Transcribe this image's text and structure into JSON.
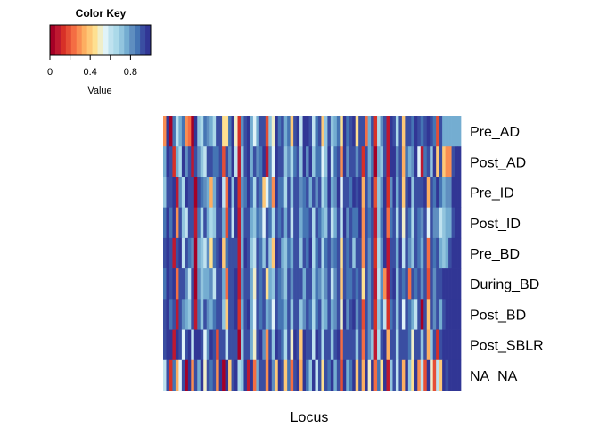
{
  "chart_data": {
    "type": "heatmap",
    "color_key": {
      "title": "Color Key",
      "xlabel": "Value",
      "ticks": [
        0,
        0.4,
        0.8
      ],
      "tick_labels": [
        "0",
        "0.4",
        "0.8"
      ],
      "range": [
        0,
        1
      ],
      "palette": [
        "#a50026",
        "#be1830",
        "#d73027",
        "#e54e35",
        "#f46d43",
        "#f98e52",
        "#fdae61",
        "#fec877",
        "#fee090",
        "#f0eec9",
        "#e0f3f8",
        "#bfe2ef",
        "#abd9e9",
        "#92c5de",
        "#74add1",
        "#5f8ec0",
        "#4575b4",
        "#3a4ea2",
        "#313695"
      ]
    },
    "rows": [
      "Pre_AD",
      "Post_AD",
      "Pre_ID",
      "Post_ID",
      "Pre_BD",
      "During_BD",
      "Post_BD",
      "Post_SBLR",
      "NA_NA"
    ],
    "xlabel": "Locus",
    "n_columns": 96,
    "values": [
      [
        0.3,
        0.97,
        0.02,
        0.88,
        0.6,
        0.75,
        0.85,
        0.3,
        0.25,
        0.05,
        0.95,
        0.72,
        0.64,
        0.88,
        0.82,
        0.74,
        0.68,
        0.92,
        0.93,
        0.45,
        0.45,
        0.86,
        0.97,
        0.52,
        0.12,
        0.82,
        0.93,
        0.95,
        0.78,
        0.55,
        0.77,
        0.9,
        0.92,
        0.2,
        0.7,
        0.48,
        0.95,
        0.85,
        0.92,
        0.78,
        0.85,
        0.4,
        0.9,
        0.95,
        0.62,
        0.98,
        0.95,
        0.92,
        0.62,
        0.85,
        0.9,
        0.4,
        0.72,
        0.92,
        0.7,
        0.74,
        0.85,
        0.45,
        0.95,
        0.86,
        0.9,
        0.96,
        0.45,
        0.92,
        0.92,
        0.22,
        0.75,
        0.94,
        0.15,
        0.68,
        0.82,
        0.94,
        0.08,
        0.95,
        0.92,
        0.65,
        0.92,
        0.42,
        0.9,
        0.91,
        0.85,
        0.95,
        0.92,
        0.86,
        0.92,
        0.95,
        0.93,
        0.88,
        0.2,
        0.93,
        0.76,
        0.76,
        0.76,
        0.76,
        0.76,
        0.76
      ],
      [
        0.78,
        0.97,
        0.92,
        0.15,
        0.75,
        0.65,
        0.95,
        0.8,
        0.9,
        0.08,
        0.9,
        0.82,
        0.7,
        0.6,
        0.9,
        0.92,
        0.86,
        0.85,
        0.92,
        0.18,
        0.93,
        0.8,
        0.97,
        0.6,
        0.08,
        0.7,
        0.92,
        0.96,
        0.74,
        0.9,
        0.82,
        0.88,
        0.95,
        0.08,
        0.8,
        0.55,
        0.95,
        0.92,
        0.9,
        0.7,
        0.8,
        0.68,
        0.88,
        0.92,
        0.72,
        0.98,
        0.8,
        0.95,
        0.72,
        0.86,
        0.88,
        0.55,
        0.72,
        0.95,
        0.58,
        0.85,
        0.92,
        0.3,
        0.96,
        0.8,
        0.92,
        0.9,
        0.8,
        0.92,
        0.12,
        0.92,
        0.76,
        0.88,
        0.05,
        0.76,
        0.7,
        0.92,
        0.1,
        0.96,
        0.95,
        0.82,
        0.92,
        0.35,
        0.88,
        0.78,
        0.82,
        0.96,
        0.55,
        0.08,
        0.88,
        0.93,
        0.72,
        0.95,
        0.4,
        0.93,
        0.42,
        0.28,
        0.28,
        0.9,
        0.97,
        0.97
      ],
      [
        0.7,
        0.93,
        0.92,
        0.95,
        0.1,
        0.82,
        0.68,
        0.96,
        0.9,
        0.92,
        0.05,
        0.92,
        0.88,
        0.82,
        0.75,
        0.35,
        0.76,
        0.92,
        0.95,
        0.6,
        0.25,
        0.96,
        0.72,
        0.96,
        0.14,
        0.8,
        0.88,
        0.95,
        0.86,
        0.65,
        0.92,
        0.85,
        0.4,
        0.55,
        0.8,
        0.3,
        0.96,
        0.85,
        0.88,
        0.68,
        0.92,
        0.72,
        0.92,
        0.92,
        0.8,
        0.86,
        0.92,
        0.76,
        0.92,
        0.84,
        0.9,
        0.65,
        0.78,
        0.96,
        0.74,
        0.82,
        0.96,
        0.55,
        0.94,
        0.9,
        0.86,
        0.96,
        0.92,
        0.97,
        0.35,
        0.9,
        0.82,
        0.96,
        0.2,
        0.7,
        0.82,
        0.95,
        0.12,
        0.82,
        0.96,
        0.75,
        0.92,
        0.4,
        0.92,
        0.95,
        0.72,
        0.9,
        0.92,
        0.94,
        0.95,
        0.35,
        0.93,
        0.86,
        0.96,
        0.88,
        0.78,
        0.82,
        0.82,
        0.96,
        0.97,
        0.97
      ],
      [
        0.85,
        0.97,
        0.88,
        0.95,
        0.3,
        0.9,
        0.7,
        0.6,
        0.92,
        0.94,
        0.08,
        0.86,
        0.65,
        0.9,
        0.78,
        0.66,
        0.7,
        0.92,
        0.94,
        0.75,
        0.2,
        0.94,
        0.62,
        0.97,
        0.1,
        0.78,
        0.92,
        0.9,
        0.76,
        0.7,
        0.88,
        0.8,
        0.55,
        0.92,
        0.85,
        0.68,
        0.94,
        0.88,
        0.9,
        0.76,
        0.92,
        0.62,
        0.9,
        0.92,
        0.78,
        0.88,
        0.86,
        0.92,
        0.68,
        0.9,
        0.86,
        0.74,
        0.7,
        0.92,
        0.62,
        0.78,
        0.92,
        0.58,
        0.95,
        0.82,
        0.92,
        0.85,
        0.88,
        0.96,
        0.3,
        0.92,
        0.86,
        0.92,
        0.08,
        0.72,
        0.88,
        0.96,
        0.22,
        0.86,
        0.92,
        0.65,
        0.9,
        0.5,
        0.92,
        0.88,
        0.68,
        0.92,
        0.88,
        0.8,
        0.94,
        0.56,
        0.94,
        0.82,
        0.8,
        0.62,
        0.72,
        0.74,
        0.76,
        0.92,
        0.97,
        0.97
      ],
      [
        0.94,
        0.97,
        0.9,
        0.08,
        0.94,
        0.95,
        0.62,
        0.9,
        0.88,
        0.82,
        0.05,
        0.78,
        0.72,
        0.6,
        0.82,
        0.45,
        0.88,
        0.92,
        0.96,
        0.4,
        0.88,
        0.92,
        0.92,
        0.92,
        0.08,
        0.74,
        0.96,
        0.92,
        0.7,
        0.6,
        0.92,
        0.86,
        0.72,
        0.9,
        0.7,
        0.4,
        0.95,
        0.92,
        0.74,
        0.72,
        0.88,
        0.78,
        0.92,
        0.9,
        0.7,
        0.92,
        0.85,
        0.95,
        0.65,
        0.88,
        0.92,
        0.68,
        0.86,
        0.92,
        0.8,
        0.88,
        0.9,
        0.45,
        0.92,
        0.88,
        0.94,
        0.72,
        0.9,
        0.94,
        0.3,
        0.92,
        0.8,
        0.92,
        0.12,
        0.65,
        0.82,
        0.96,
        0.1,
        0.9,
        0.92,
        0.75,
        0.96,
        0.62,
        0.92,
        0.82,
        0.7,
        0.92,
        0.86,
        0.75,
        0.94,
        0.25,
        0.94,
        0.86,
        0.92,
        0.75,
        0.72,
        0.78,
        0.92,
        0.96,
        0.97,
        0.97
      ],
      [
        0.86,
        0.96,
        0.92,
        0.95,
        0.22,
        0.92,
        0.92,
        0.82,
        0.6,
        0.92,
        0.05,
        0.82,
        0.72,
        0.76,
        0.78,
        0.8,
        0.6,
        0.92,
        0.92,
        0.78,
        0.25,
        0.9,
        0.94,
        0.95,
        0.1,
        0.82,
        0.92,
        0.92,
        0.76,
        0.5,
        0.9,
        0.85,
        0.9,
        0.45,
        0.78,
        0.7,
        0.92,
        0.86,
        0.82,
        0.72,
        0.92,
        0.8,
        0.9,
        0.92,
        0.9,
        0.74,
        0.92,
        0.92,
        0.72,
        0.86,
        0.84,
        0.7,
        0.8,
        0.92,
        0.62,
        0.84,
        0.92,
        0.4,
        0.92,
        0.86,
        0.88,
        0.92,
        0.86,
        0.92,
        0.45,
        0.92,
        0.82,
        0.92,
        0.08,
        0.6,
        0.82,
        0.3,
        0.08,
        0.92,
        0.95,
        0.7,
        0.92,
        0.88,
        0.92,
        0.25,
        0.9,
        0.88,
        0.92,
        0.8,
        0.92,
        0.2,
        0.94,
        0.8,
        0.92,
        0.92,
        0.95,
        0.97,
        0.97,
        0.97,
        0.97,
        0.97
      ],
      [
        0.92,
        0.97,
        0.88,
        0.9,
        0.1,
        0.92,
        0.84,
        0.75,
        0.7,
        0.92,
        0.06,
        0.86,
        0.7,
        0.92,
        0.8,
        0.74,
        0.86,
        0.92,
        0.92,
        0.7,
        0.4,
        0.92,
        0.92,
        0.95,
        0.12,
        0.76,
        0.92,
        0.95,
        0.78,
        0.55,
        0.92,
        0.86,
        0.9,
        0.78,
        0.82,
        0.55,
        0.92,
        0.88,
        0.86,
        0.76,
        0.92,
        0.7,
        0.92,
        0.92,
        0.72,
        0.8,
        0.9,
        0.88,
        0.68,
        0.86,
        0.92,
        0.7,
        0.76,
        0.92,
        0.74,
        0.82,
        0.9,
        0.5,
        0.95,
        0.82,
        0.9,
        0.95,
        0.84,
        0.92,
        0.2,
        0.92,
        0.84,
        0.92,
        0.12,
        0.72,
        0.86,
        0.62,
        0.12,
        0.85,
        0.92,
        0.72,
        0.92,
        0.55,
        0.92,
        0.88,
        0.78,
        0.62,
        0.92,
        0.05,
        0.94,
        0.4,
        0.92,
        0.84,
        0.92,
        0.74,
        0.93,
        0.97,
        0.97,
        0.97,
        0.97,
        0.97
      ],
      [
        0.94,
        0.97,
        0.95,
        0.07,
        0.95,
        0.9,
        0.55,
        0.92,
        0.97,
        0.6,
        0.96,
        0.95,
        0.94,
        0.55,
        0.82,
        0.96,
        0.9,
        0.2,
        0.94,
        0.92,
        0.6,
        0.92,
        0.9,
        0.92,
        0.05,
        0.7,
        0.92,
        0.92,
        0.78,
        0.5,
        0.92,
        0.95,
        0.8,
        0.3,
        0.92,
        0.72,
        0.95,
        0.92,
        0.88,
        0.65,
        0.92,
        0.5,
        0.95,
        0.92,
        0.4,
        0.96,
        0.92,
        0.94,
        0.62,
        0.96,
        0.92,
        0.66,
        0.92,
        0.92,
        0.7,
        0.92,
        0.95,
        0.25,
        0.94,
        0.9,
        0.92,
        0.92,
        0.72,
        0.94,
        0.22,
        0.92,
        0.84,
        0.7,
        0.1,
        0.65,
        0.92,
        0.95,
        0.35,
        0.9,
        0.94,
        0.68,
        0.92,
        0.92,
        0.9,
        0.85,
        0.5,
        0.94,
        0.92,
        0.7,
        0.94,
        0.35,
        0.72,
        0.92,
        0.12,
        0.92,
        0.97,
        0.97,
        0.97,
        0.97,
        0.97,
        0.97
      ],
      [
        0.62,
        0.9,
        0.15,
        0.88,
        0.35,
        0.55,
        0.92,
        0.02,
        0.95,
        0.3,
        0.92,
        0.75,
        0.95,
        0.5,
        0.92,
        0.88,
        0.94,
        0.28,
        0.95,
        0.05,
        0.95,
        0.4,
        0.92,
        0.96,
        0.65,
        0.72,
        0.96,
        0.1,
        0.96,
        0.25,
        0.78,
        0.93,
        0.92,
        0.3,
        0.96,
        0.82,
        0.4,
        0.95,
        0.92,
        0.42,
        0.88,
        0.25,
        0.92,
        0.95,
        0.35,
        0.96,
        0.85,
        0.7,
        0.95,
        0.6,
        0.94,
        0.45,
        0.92,
        0.85,
        0.96,
        0.78,
        0.92,
        0.2,
        0.95,
        0.75,
        0.88,
        0.96,
        0.42,
        0.92,
        0.35,
        0.95,
        0.5,
        0.96,
        0.25,
        0.85,
        0.45,
        0.95,
        0.08,
        0.72,
        0.92,
        0.62,
        0.9,
        0.35,
        0.95,
        0.72,
        0.45,
        0.96,
        0.3,
        0.6,
        0.2,
        0.95,
        0.52,
        0.18,
        0.62,
        0.4,
        0.95,
        0.92,
        0.96,
        0.97,
        0.97,
        0.97
      ]
    ]
  }
}
